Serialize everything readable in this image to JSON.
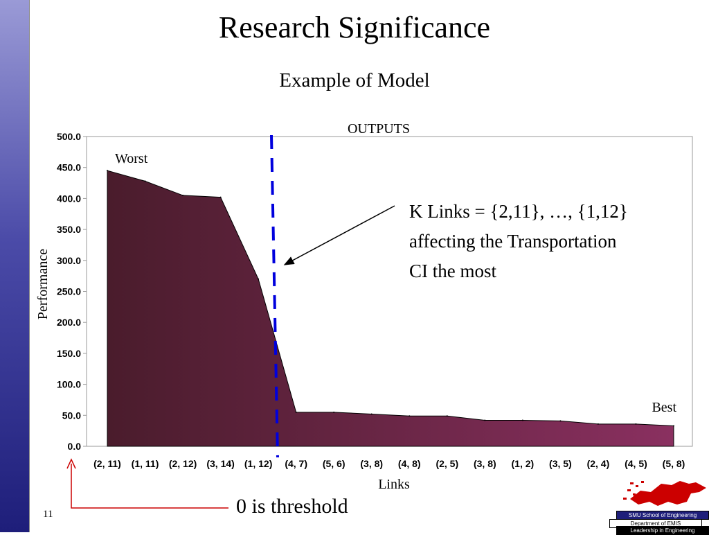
{
  "slide": {
    "title": "Research Significance",
    "subtitle": "Example of Model",
    "page_number": "11",
    "annotation_lines": [
      "K Links = {2,11}, …, {1,12}",
      "affecting the Transportation",
      "CI the most"
    ],
    "threshold_note": "0 is threshold",
    "logo": {
      "line1": "SMU School of Engineering",
      "line2": "Department of EMIS",
      "line3": "Leadership in Engineering"
    }
  },
  "chart_data": {
    "type": "area",
    "title": "OUTPUTS",
    "xlabel": "Links",
    "ylabel": "Performance",
    "categories": [
      "(2, 11)",
      "(1, 11)",
      "(2, 12)",
      "(3, 14)",
      "(1, 12)",
      "(4, 7)",
      "(5, 6)",
      "(3, 8)",
      "(4, 8)",
      "(2, 5)",
      "(3, 8)",
      "(1, 2)",
      "(3, 5)",
      "(2, 4)",
      "(4, 5)",
      "(5, 8)"
    ],
    "values": [
      445,
      428,
      405,
      402,
      270,
      55,
      55,
      52,
      49,
      49,
      42,
      42,
      41,
      36,
      36,
      33
    ],
    "ylim": [
      0,
      500
    ],
    "yticks": [
      "0.0",
      "50.0",
      "100.0",
      "150.0",
      "200.0",
      "250.0",
      "300.0",
      "350.0",
      "400.0",
      "450.0",
      "500.0"
    ],
    "annotations": {
      "worst": "Worst",
      "best": "Best"
    },
    "grid": false,
    "colors": {
      "fill_left": "#4a1c2c",
      "fill_right": "#8a3060",
      "threshold_line": "#0000dd"
    }
  }
}
